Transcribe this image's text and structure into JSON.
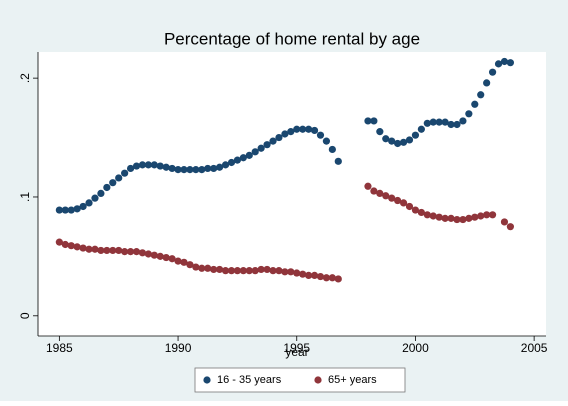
{
  "chart_data": {
    "type": "scatter",
    "title": "Percentage of home rental by age",
    "xlabel": "year",
    "x": [
      1985,
      1985.25,
      1985.5,
      1985.75,
      1986,
      1986.25,
      1986.5,
      1986.75,
      1987,
      1987.25,
      1987.5,
      1987.75,
      1988,
      1988.25,
      1988.5,
      1988.75,
      1989,
      1989.25,
      1989.5,
      1989.75,
      1990,
      1990.25,
      1990.5,
      1990.75,
      1991,
      1991.25,
      1991.5,
      1991.75,
      1992,
      1992.25,
      1992.5,
      1992.75,
      1993,
      1993.25,
      1993.5,
      1993.75,
      1994,
      1994.25,
      1994.5,
      1994.75,
      1995,
      1995.25,
      1995.5,
      1995.75,
      1996,
      1996.25,
      1996.5,
      1996.75,
      1997,
      1997.25,
      1997.5,
      1997.75,
      1998,
      1998.25,
      1998.5,
      1998.75,
      1999,
      1999.25,
      1999.5,
      1999.75,
      2000,
      2000.25,
      2000.5,
      2000.75,
      2001,
      2001.25,
      2001.5,
      2001.75,
      2002,
      2002.25,
      2002.5,
      2002.75,
      2003,
      2003.25,
      2003.5,
      2003.75,
      2004
    ],
    "series": [
      {
        "name": "16 - 35 years",
        "color": "#1a476f",
        "values": [
          0.089,
          0.089,
          0.089,
          0.09,
          0.092,
          0.095,
          0.099,
          0.103,
          0.108,
          0.112,
          0.116,
          0.12,
          0.124,
          0.126,
          0.127,
          0.127,
          0.127,
          0.126,
          0.125,
          0.124,
          0.123,
          0.123,
          0.123,
          0.123,
          0.123,
          0.124,
          0.124,
          0.125,
          0.127,
          0.129,
          0.131,
          0.133,
          0.135,
          0.138,
          0.141,
          0.144,
          0.147,
          0.15,
          0.153,
          0.155,
          0.157,
          0.157,
          0.157,
          0.156,
          0.152,
          0.147,
          0.14,
          0.13,
          null,
          null,
          null,
          null,
          0.164,
          0.164,
          0.155,
          0.149,
          0.147,
          0.145,
          0.146,
          0.148,
          0.152,
          0.157,
          0.162,
          0.163,
          0.163,
          0.163,
          0.161,
          0.161,
          0.164,
          0.17,
          0.178,
          0.186,
          0.196,
          0.205,
          0.212,
          0.214,
          0.213
        ]
      },
      {
        "name": "65+ years",
        "color": "#90353b",
        "values": [
          0.062,
          0.06,
          0.059,
          0.058,
          0.057,
          0.056,
          0.056,
          0.055,
          0.055,
          0.055,
          0.055,
          0.054,
          0.054,
          0.054,
          0.053,
          0.052,
          0.051,
          0.05,
          0.049,
          0.048,
          0.046,
          0.045,
          0.043,
          0.041,
          0.04,
          0.04,
          0.039,
          0.039,
          0.038,
          0.038,
          0.038,
          0.038,
          0.038,
          0.038,
          0.039,
          0.039,
          0.038,
          0.038,
          0.037,
          0.037,
          0.036,
          0.035,
          0.034,
          0.034,
          0.033,
          0.032,
          0.032,
          0.031,
          null,
          null,
          null,
          null,
          0.109,
          0.105,
          0.103,
          0.101,
          0.099,
          0.097,
          0.095,
          0.092,
          0.089,
          0.087,
          0.085,
          0.084,
          0.083,
          0.082,
          0.082,
          0.081,
          0.081,
          0.082,
          0.083,
          0.084,
          0.085,
          0.085,
          null,
          0.079,
          0.075
        ]
      }
    ],
    "xlim": [
      1984.1,
      2005.5
    ],
    "ylim": [
      -0.017,
      0.222
    ],
    "xticks": [
      1985,
      1990,
      1995,
      2000,
      2005
    ],
    "yticks": [
      0,
      {
        "value": 0.1,
        "label": ".1"
      },
      {
        "value": 0.2,
        "label": ".2"
      }
    ]
  }
}
